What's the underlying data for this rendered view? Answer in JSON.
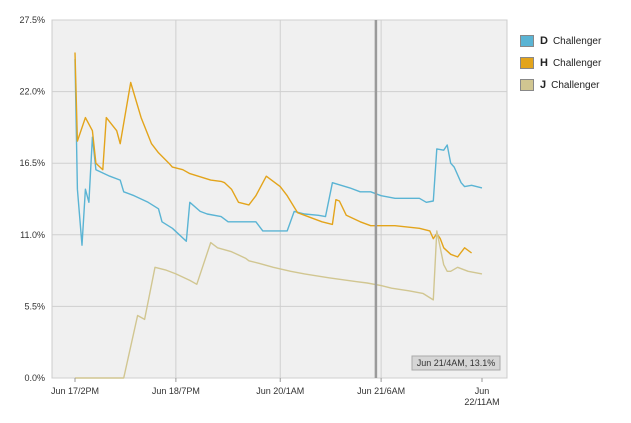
{
  "chart_data": {
    "type": "line",
    "x_ticks": [
      "Jun 17/2PM",
      "Jun 18/7PM",
      "Jun 20/1AM",
      "Jun 21/6AM",
      "Jun 22/11AM"
    ],
    "x_tick_lines": [
      [
        "Jun 17/2PM"
      ],
      [
        "Jun 18/7PM"
      ],
      [
        "Jun 20/1AM"
      ],
      [
        "Jun 21/6AM"
      ],
      [
        "Jun",
        "22/11AM"
      ]
    ],
    "x_tick_hours": [
      0,
      29,
      59,
      88,
      117
    ],
    "x_range_hours": [
      0,
      117
    ],
    "ylim": [
      0,
      27.5
    ],
    "y_ticks": [
      0,
      5.5,
      11,
      16.5,
      22,
      27.5
    ],
    "y_tick_labels": [
      "0.0%",
      "5.5%",
      "11.0%",
      "16.5%",
      "22.0%",
      "27.5%"
    ],
    "grid": true,
    "legend_position": "right",
    "crosshair": {
      "x_hours": 86.5,
      "tooltip": "Jun 21/4AM, 13.1%"
    },
    "series": [
      {
        "letter": "D",
        "name": "Challenger",
        "color": "#5ab4d4",
        "points": [
          [
            0,
            24.5
          ],
          [
            0.7,
            14.5
          ],
          [
            2,
            10.2
          ],
          [
            3,
            14.5
          ],
          [
            4,
            13.5
          ],
          [
            5,
            18.5
          ],
          [
            6,
            16
          ],
          [
            10,
            15.5
          ],
          [
            13,
            15.2
          ],
          [
            14,
            14.3
          ],
          [
            17,
            14
          ],
          [
            21,
            13.5
          ],
          [
            24,
            13
          ],
          [
            25,
            12
          ],
          [
            28,
            11.5
          ],
          [
            30,
            11
          ],
          [
            32,
            10.5
          ],
          [
            33,
            13.5
          ],
          [
            36,
            12.8
          ],
          [
            38,
            12.6
          ],
          [
            42,
            12.4
          ],
          [
            44,
            12
          ],
          [
            52,
            12
          ],
          [
            54,
            11.3
          ],
          [
            61,
            11.3
          ],
          [
            63,
            12.8
          ],
          [
            66,
            12.6
          ],
          [
            70,
            12.5
          ],
          [
            72,
            12.4
          ],
          [
            74,
            15
          ],
          [
            79,
            14.6
          ],
          [
            82,
            14.3
          ],
          [
            85,
            14.3
          ],
          [
            88,
            14
          ],
          [
            92,
            13.8
          ],
          [
            99,
            13.8
          ],
          [
            101,
            13.5
          ],
          [
            103,
            13.6
          ],
          [
            104,
            17.6
          ],
          [
            106,
            17.5
          ],
          [
            107,
            17.9
          ],
          [
            108,
            16.5
          ],
          [
            109,
            16.2
          ],
          [
            111,
            15
          ],
          [
            112,
            14.7
          ],
          [
            114,
            14.8
          ],
          [
            117,
            14.6
          ]
        ]
      },
      {
        "letter": "H",
        "name": "Challenger",
        "color": "#e3a41b",
        "points": [
          [
            0,
            25
          ],
          [
            0.7,
            18.2
          ],
          [
            3,
            20
          ],
          [
            5,
            19
          ],
          [
            6,
            16.5
          ],
          [
            8,
            16
          ],
          [
            9,
            20
          ],
          [
            12,
            19
          ],
          [
            13,
            18
          ],
          [
            16,
            22.7
          ],
          [
            19,
            20
          ],
          [
            22,
            18
          ],
          [
            24,
            17.3
          ],
          [
            27,
            16.5
          ],
          [
            28,
            16.2
          ],
          [
            31,
            16
          ],
          [
            33,
            15.7
          ],
          [
            39,
            15.2
          ],
          [
            42,
            15.1
          ],
          [
            43,
            15
          ],
          [
            45,
            14.5
          ],
          [
            47,
            13.5
          ],
          [
            50,
            13.3
          ],
          [
            52,
            14
          ],
          [
            55,
            15.5
          ],
          [
            59,
            14.7
          ],
          [
            61,
            14
          ],
          [
            64,
            12.7
          ],
          [
            66,
            12.5
          ],
          [
            71,
            12
          ],
          [
            74,
            11.8
          ],
          [
            75,
            13.7
          ],
          [
            76,
            13.6
          ],
          [
            78,
            12.5
          ],
          [
            82,
            12
          ],
          [
            85,
            11.7
          ],
          [
            88,
            11.7
          ],
          [
            92,
            11.7
          ],
          [
            99,
            11.5
          ],
          [
            102,
            11.3
          ],
          [
            103,
            10.7
          ],
          [
            104,
            11.1
          ],
          [
            105,
            10.7
          ],
          [
            106,
            10
          ],
          [
            108,
            9.5
          ],
          [
            110,
            9.3
          ],
          [
            112,
            10
          ],
          [
            114,
            9.6
          ]
        ]
      },
      {
        "letter": "J",
        "name": "Challenger",
        "color": "#d1c691",
        "points": [
          [
            0,
            0
          ],
          [
            11,
            0
          ],
          [
            14,
            0
          ],
          [
            18,
            4.8
          ],
          [
            20,
            4.5
          ],
          [
            23,
            8.5
          ],
          [
            26,
            8.3
          ],
          [
            29,
            8
          ],
          [
            33,
            7.5
          ],
          [
            35,
            7.2
          ],
          [
            39,
            10.4
          ],
          [
            41,
            10
          ],
          [
            45,
            9.7
          ],
          [
            49,
            9.2
          ],
          [
            50,
            9
          ],
          [
            53,
            8.8
          ],
          [
            57,
            8.5
          ],
          [
            62,
            8.2
          ],
          [
            66,
            8
          ],
          [
            73,
            7.7
          ],
          [
            81,
            7.4
          ],
          [
            84,
            7.3
          ],
          [
            88,
            7.1
          ],
          [
            91,
            6.9
          ],
          [
            96,
            6.7
          ],
          [
            100,
            6.5
          ],
          [
            103,
            6
          ],
          [
            104,
            11.3
          ],
          [
            106,
            8.7
          ],
          [
            107,
            8.2
          ],
          [
            108,
            8.2
          ],
          [
            110,
            8.5
          ],
          [
            113,
            8.2
          ],
          [
            117,
            8
          ]
        ]
      }
    ]
  }
}
